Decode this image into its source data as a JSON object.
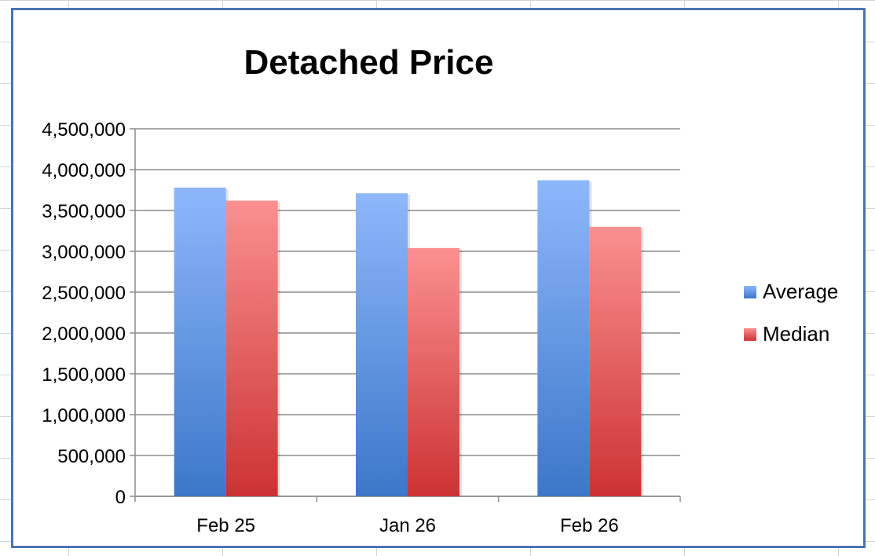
{
  "chart_data": {
    "type": "bar",
    "title": "Detached Price",
    "categories": [
      "Feb 25",
      "Jan 26",
      "Feb 26"
    ],
    "series": [
      {
        "name": "Average",
        "values": [
          3780000,
          3710000,
          3870000
        ],
        "color_top": "#8eb7fb",
        "color_bottom": "#3c77c9"
      },
      {
        "name": "Median",
        "values": [
          3620000,
          3040000,
          3300000
        ],
        "color_top": "#fb9090",
        "color_bottom": "#cc3333"
      }
    ],
    "ylim": [
      0,
      4500000
    ],
    "yticks": [
      "0",
      "500,000",
      "1,000,000",
      "1,500,000",
      "2,000,000",
      "2,500,000",
      "3,000,000",
      "3,500,000",
      "4,000,000",
      "4,500,000"
    ],
    "grid": true,
    "legend_position": "right"
  },
  "colors": {
    "frame_border": "#4a74b4",
    "gridline": "#8c8c8c"
  }
}
